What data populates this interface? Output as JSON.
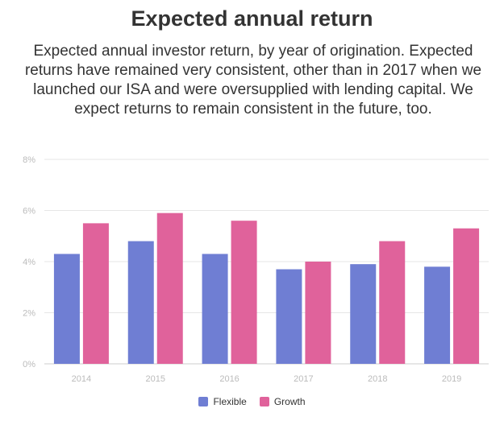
{
  "header": {
    "title": "Expected annual return",
    "subtitle": "Expected annual investor return, by year of origination. Expected returns have remained very consistent, other than in 2017 when we launched our ISA and were oversupplied with lending capital. We expect returns to remain consistent in the future, too."
  },
  "colors": {
    "flexible": "#6f7ed3",
    "growth": "#e0629b",
    "grid": "#e6e6e6",
    "axis_text": "#bbbbbb"
  },
  "chart_data": {
    "type": "bar",
    "title": "Expected annual return",
    "subtitle": "Expected annual investor return, by year of origination. Expected returns have remained very consistent, other than in 2017 when we launched our ISA and were oversupplied with lending capital. We expect returns to remain consistent in the future, too.",
    "categories": [
      "2014",
      "2015",
      "2016",
      "2017",
      "2018",
      "2019"
    ],
    "series": [
      {
        "name": "Flexible",
        "values": [
          4.3,
          4.8,
          4.3,
          3.7,
          3.9,
          3.8
        ]
      },
      {
        "name": "Growth",
        "values": [
          5.5,
          5.9,
          5.6,
          4.0,
          4.8,
          5.3
        ]
      }
    ],
    "ylim": [
      0,
      8
    ],
    "yticks": [
      0,
      2,
      4,
      6,
      8
    ],
    "ytick_labels": [
      "0%",
      "2%",
      "4%",
      "6%",
      "8%"
    ],
    "xlabel": "",
    "ylabel": "",
    "grid": true,
    "legend": "bottom-center"
  }
}
